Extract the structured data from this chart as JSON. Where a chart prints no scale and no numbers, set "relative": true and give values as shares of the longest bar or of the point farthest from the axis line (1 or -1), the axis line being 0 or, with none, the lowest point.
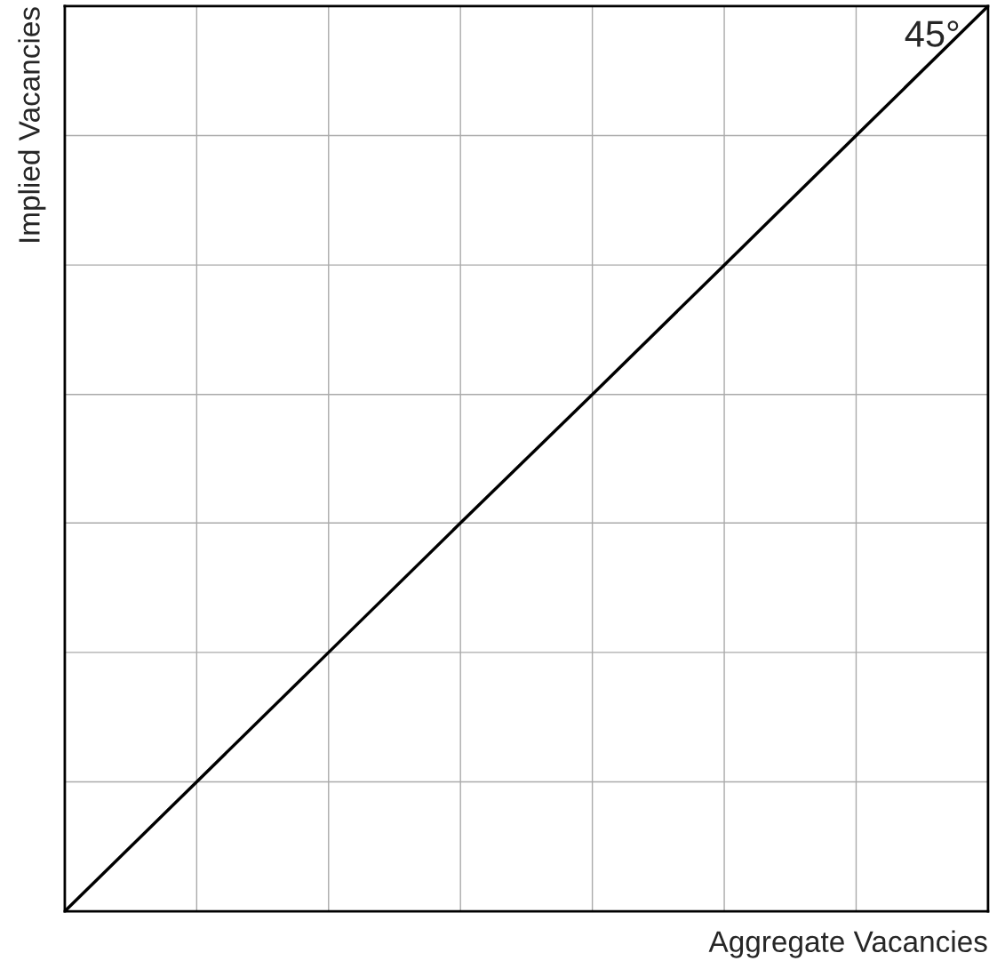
{
  "chart_data": {
    "type": "line",
    "relative": true,
    "xlabel": "Aggregate Vacancies",
    "ylabel": "Implied Vacancies",
    "categories": [
      null,
      null,
      null,
      null,
      null,
      null,
      null,
      null
    ],
    "series": [
      {
        "color": "#000000",
        "values": [
          0,
          0.143,
          0.286,
          0.429,
          0.571,
          0.714,
          0.857,
          1
        ]
      }
    ],
    "annotations": [
      "45°"
    ],
    "grid": true,
    "marker": "none",
    "line_style": "solid"
  }
}
